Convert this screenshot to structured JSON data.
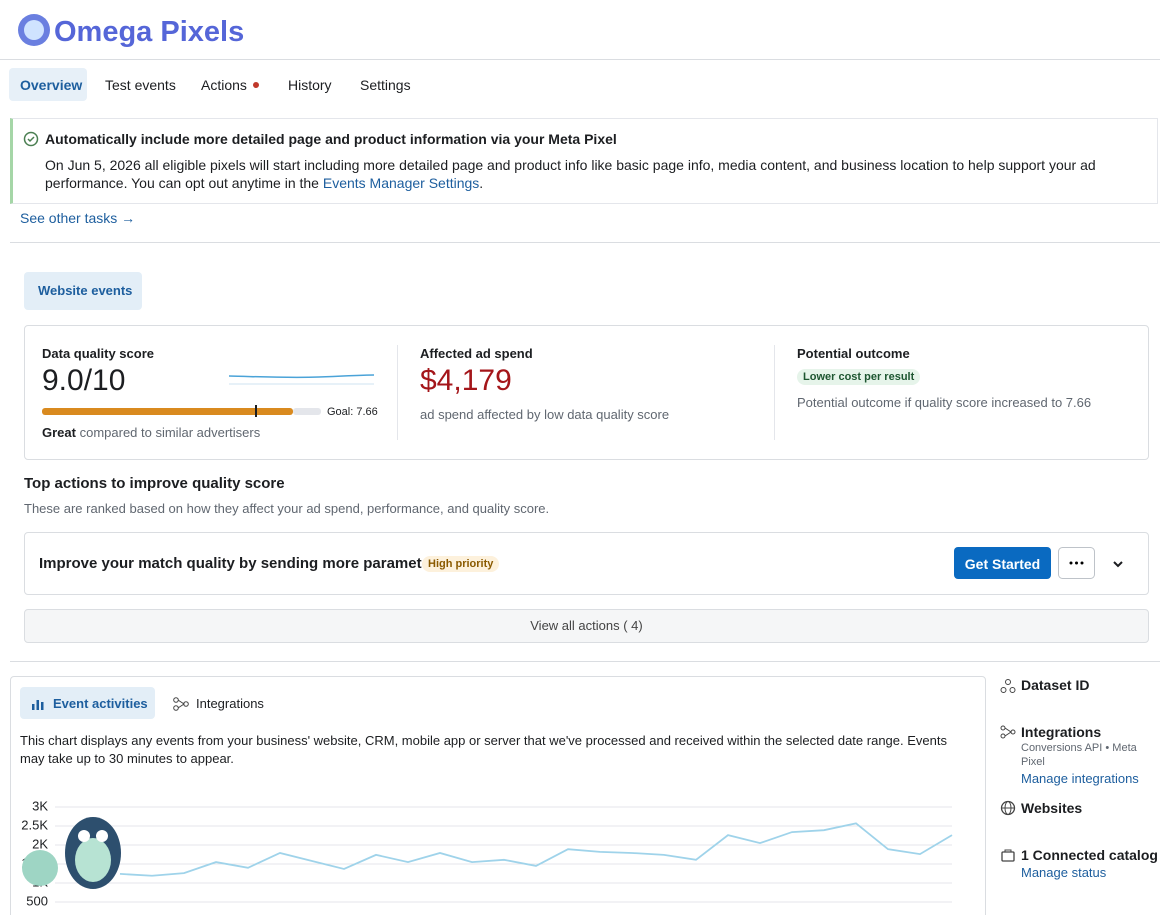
{
  "header": {
    "logo": "Omega Pixels"
  },
  "tabs": [
    "Overview",
    "Test events",
    "Actions",
    "History",
    "Settings"
  ],
  "banner": {
    "title": "Automatically include more detailed page and product information via your Meta Pixel",
    "body": "On Jun 5, 2026 all eligible pixels will start including more detailed page and product info like basic page info, media content, and business location to help support your ad performance. You can opt out anytime in the ",
    "link": "Events Manager Settings",
    "end": "."
  },
  "see_other_tasks": "See other tasks →",
  "section_tab": "Website events",
  "metrics": [
    {
      "label": "Data quality score",
      "value": "9.0/10",
      "goal": "Goal: 7.66",
      "rating": "Great",
      "comparison": "compared to similar advertisers"
    },
    {
      "label": "Affected ad spend",
      "value": "$4,179",
      "note": "ad spend affected by low data quality score"
    },
    {
      "label": "Potential outcome",
      "badge": "Lower cost per result",
      "note": "Potential outcome if quality score increased to 7.66"
    }
  ],
  "top_actions": {
    "title": "Top actions to improve quality score",
    "subtitle": "These are ranked based on how they affect your ad spend, performance, and quality score.",
    "action": {
      "text": "Improve your match quality by sending more parameters",
      "badge": "High priority",
      "button": "Get Started"
    },
    "view_all": "View all actions ( 4)"
  },
  "activity": {
    "tabs": [
      "Event activities",
      "Integrations"
    ],
    "description": "This chart displays any events from your business' website, CRM, mobile app or server that we've processed and received within the selected date range. Events may take up to 30 minutes to appear.",
    "chart": {
      "type": "line",
      "color": "#9fd3ea",
      "ylim": [
        500,
        3000
      ],
      "yticks": [
        {
          "value": 500,
          "label": "500"
        },
        {
          "value": 1000,
          "label": "1K"
        },
        {
          "value": 1500,
          "label": "1.5K"
        },
        {
          "value": 2000,
          "label": "2K"
        },
        {
          "value": 2500,
          "label": "2.5K"
        },
        {
          "value": 3000,
          "label": "3K"
        }
      ],
      "values": [
        1240,
        1190,
        1260,
        1550,
        1400,
        1790,
        1580,
        1370,
        1740,
        1550,
        1790,
        1550,
        1610,
        1450,
        1890,
        1820,
        1790,
        1740,
        1610,
        2260,
        2050,
        2340,
        2390,
        2570,
        1890,
        1760,
        2260
      ]
    }
  },
  "sidebar": [
    {
      "title": "Dataset ID"
    },
    {
      "title": "Integrations",
      "subtitle": "Conversions API • Meta Pixel",
      "link": "Manage integrations"
    },
    {
      "title": "Websites"
    },
    {
      "title": "1 Connected catalog",
      "link": "Manage status"
    }
  ]
}
